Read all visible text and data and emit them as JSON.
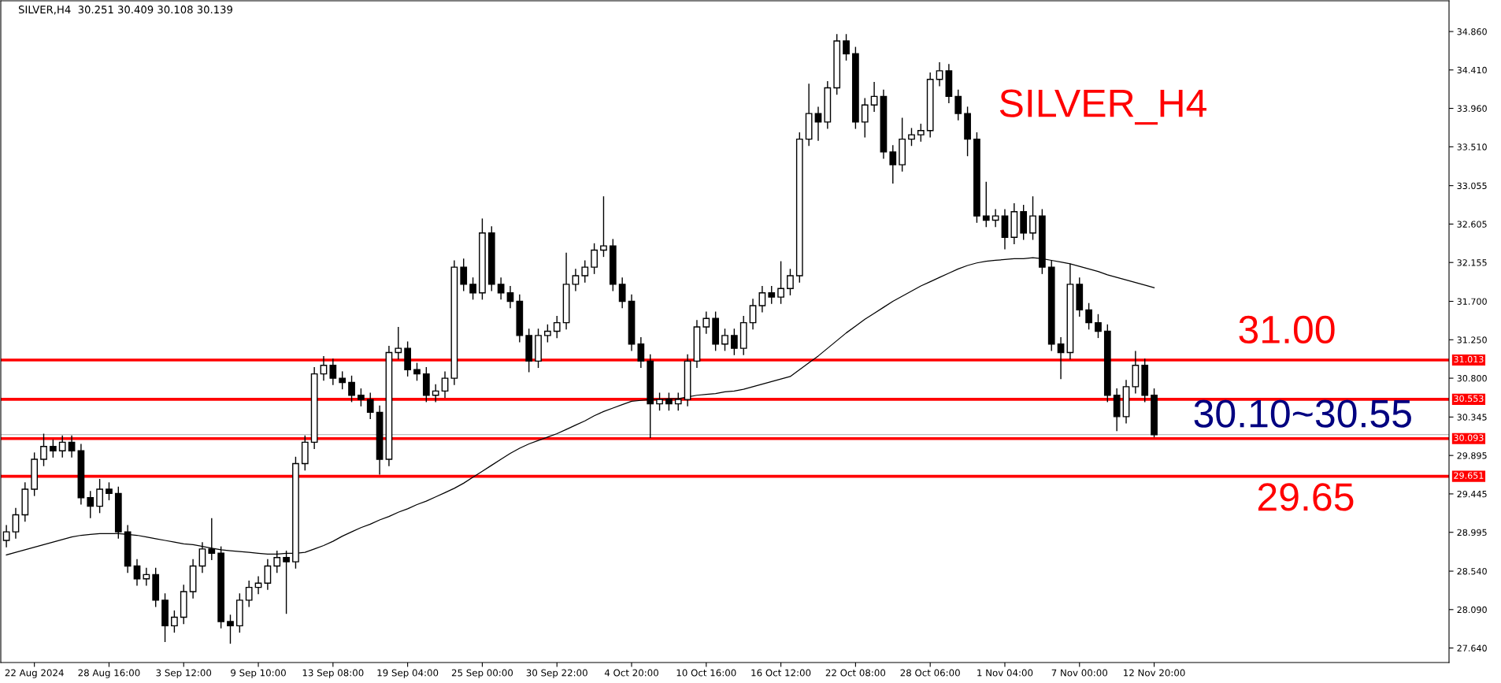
{
  "chart_data": {
    "type": "candlestick",
    "title": "SILVER,H4  30.251 30.409 30.108 30.139",
    "annotations": [
      "SILVER_H4",
      "31.00",
      "30.10~30.55",
      "29.65"
    ],
    "color": "#000000",
    "categories": [
      null,
      null,
      null,
      "22 Aug 2024",
      null,
      null,
      null,
      null,
      null,
      null,
      null,
      "28 Aug 16:00",
      null,
      null,
      null,
      null,
      null,
      null,
      null,
      "3 Sep 12:00",
      null,
      null,
      null,
      null,
      null,
      null,
      null,
      "9 Sep 10:00",
      null,
      null,
      null,
      null,
      null,
      null,
      null,
      "13 Sep 08:00",
      null,
      null,
      null,
      null,
      null,
      null,
      null,
      "19 Sep 04:00",
      null,
      null,
      null,
      null,
      null,
      null,
      null,
      "25 Sep 00:00",
      null,
      null,
      null,
      null,
      null,
      null,
      null,
      "30 Sep 22:00",
      null,
      null,
      null,
      null,
      null,
      null,
      null,
      "4 Oct 20:00",
      null,
      null,
      null,
      null,
      null,
      null,
      null,
      "10 Oct 16:00",
      null,
      null,
      null,
      null,
      null,
      null,
      null,
      "16 Oct 12:00",
      null,
      null,
      null,
      null,
      null,
      null,
      null,
      "22 Oct 08:00",
      null,
      null,
      null,
      null,
      null,
      null,
      null,
      "28 Oct 06:00",
      null,
      null,
      null,
      null,
      null,
      null,
      null,
      "1 Nov 04:00",
      null,
      null,
      null,
      null,
      null,
      null,
      null,
      "7 Nov 00:00",
      null,
      null,
      null,
      null,
      null,
      null,
      null,
      "12 Nov 20:00"
    ],
    "ohlc": [
      [
        28.9,
        29.08,
        28.82,
        29.0
      ],
      [
        29.0,
        29.28,
        28.92,
        29.2
      ],
      [
        29.2,
        29.58,
        29.12,
        29.5
      ],
      [
        29.5,
        29.93,
        29.42,
        29.85
      ],
      [
        29.85,
        30.15,
        29.77,
        30.0
      ],
      [
        30.0,
        30.08,
        29.87,
        29.95
      ],
      [
        29.95,
        30.13,
        29.87,
        30.05
      ],
      [
        30.05,
        30.13,
        29.87,
        29.95
      ],
      [
        29.95,
        30.03,
        29.32,
        29.4
      ],
      [
        29.4,
        29.48,
        29.16,
        29.3
      ],
      [
        29.3,
        29.62,
        29.22,
        29.5
      ],
      [
        29.5,
        29.58,
        29.37,
        29.45
      ],
      [
        29.45,
        29.53,
        28.92,
        29.0
      ],
      [
        29.0,
        29.08,
        28.52,
        28.6
      ],
      [
        28.6,
        28.68,
        28.37,
        28.45
      ],
      [
        28.45,
        28.58,
        28.37,
        28.5
      ],
      [
        28.5,
        28.58,
        28.12,
        28.2
      ],
      [
        28.2,
        28.28,
        27.71,
        27.9
      ],
      [
        27.9,
        28.08,
        27.82,
        28.0
      ],
      [
        28.0,
        28.38,
        27.92,
        28.3
      ],
      [
        28.3,
        28.68,
        28.22,
        28.6
      ],
      [
        28.6,
        28.88,
        28.52,
        28.8
      ],
      [
        28.8,
        29.16,
        28.67,
        28.75
      ],
      [
        28.75,
        28.83,
        27.87,
        27.95
      ],
      [
        27.95,
        28.03,
        27.69,
        27.9
      ],
      [
        27.9,
        28.28,
        27.82,
        28.2
      ],
      [
        28.2,
        28.43,
        28.12,
        28.35
      ],
      [
        28.35,
        28.48,
        28.27,
        28.4
      ],
      [
        28.4,
        28.68,
        28.32,
        28.6
      ],
      [
        28.6,
        28.78,
        28.52,
        28.7
      ],
      [
        28.7,
        28.78,
        28.04,
        28.65
      ],
      [
        28.65,
        29.88,
        28.57,
        29.8
      ],
      [
        29.8,
        30.13,
        29.72,
        30.05
      ],
      [
        30.05,
        30.93,
        29.97,
        30.85
      ],
      [
        30.85,
        31.06,
        30.77,
        30.95
      ],
      [
        30.95,
        31.03,
        30.72,
        30.8
      ],
      [
        30.8,
        30.88,
        30.67,
        30.75
      ],
      [
        30.75,
        30.83,
        30.52,
        30.6
      ],
      [
        30.6,
        30.68,
        30.47,
        30.55
      ],
      [
        30.55,
        30.63,
        30.32,
        30.4
      ],
      [
        30.4,
        30.48,
        29.67,
        29.85
      ],
      [
        29.85,
        31.18,
        29.77,
        31.1
      ],
      [
        31.1,
        31.4,
        31.02,
        31.15
      ],
      [
        31.15,
        31.23,
        30.82,
        30.9
      ],
      [
        30.9,
        30.98,
        30.77,
        30.85
      ],
      [
        30.85,
        30.93,
        30.52,
        30.6
      ],
      [
        30.6,
        30.73,
        30.52,
        30.65
      ],
      [
        30.65,
        30.88,
        30.57,
        30.8
      ],
      [
        30.8,
        32.18,
        30.72,
        32.1
      ],
      [
        32.1,
        32.2,
        31.82,
        31.9
      ],
      [
        31.9,
        31.98,
        31.72,
        31.8
      ],
      [
        31.8,
        32.67,
        31.72,
        32.5
      ],
      [
        32.5,
        32.58,
        31.82,
        31.9
      ],
      [
        31.9,
        31.98,
        31.72,
        31.8
      ],
      [
        31.8,
        31.88,
        31.62,
        31.7
      ],
      [
        31.7,
        31.78,
        31.22,
        31.3
      ],
      [
        31.3,
        31.38,
        30.87,
        31.0
      ],
      [
        31.0,
        31.38,
        30.92,
        31.3
      ],
      [
        31.3,
        31.43,
        31.22,
        31.35
      ],
      [
        31.35,
        31.53,
        31.27,
        31.45
      ],
      [
        31.45,
        32.27,
        31.37,
        31.9
      ],
      [
        31.9,
        32.08,
        31.82,
        32.0
      ],
      [
        32.0,
        32.18,
        31.92,
        32.1
      ],
      [
        32.1,
        32.38,
        32.02,
        32.3
      ],
      [
        32.3,
        32.93,
        32.22,
        32.35
      ],
      [
        32.35,
        32.43,
        31.82,
        31.9
      ],
      [
        31.9,
        31.98,
        31.62,
        31.7
      ],
      [
        31.7,
        31.78,
        31.12,
        31.2
      ],
      [
        31.2,
        31.28,
        30.92,
        31.0
      ],
      [
        31.0,
        31.08,
        30.1,
        30.5
      ],
      [
        30.5,
        30.63,
        30.42,
        30.55
      ],
      [
        30.55,
        30.63,
        30.42,
        30.5
      ],
      [
        30.5,
        30.63,
        30.42,
        30.55
      ],
      [
        30.55,
        31.08,
        30.47,
        31.0
      ],
      [
        31.0,
        31.48,
        30.92,
        31.4
      ],
      [
        31.4,
        31.58,
        31.32,
        31.5
      ],
      [
        31.5,
        31.58,
        31.12,
        31.2
      ],
      [
        31.2,
        31.38,
        31.12,
        31.3
      ],
      [
        31.3,
        31.38,
        31.07,
        31.15
      ],
      [
        31.15,
        31.53,
        31.07,
        31.45
      ],
      [
        31.45,
        31.73,
        31.37,
        31.65
      ],
      [
        31.65,
        31.88,
        31.57,
        31.8
      ],
      [
        31.8,
        31.88,
        31.67,
        31.75
      ],
      [
        31.75,
        32.17,
        31.67,
        31.85
      ],
      [
        31.85,
        32.08,
        31.77,
        32.0
      ],
      [
        32.0,
        33.68,
        31.92,
        33.6
      ],
      [
        33.6,
        34.25,
        33.52,
        33.9
      ],
      [
        33.9,
        33.98,
        33.58,
        33.8
      ],
      [
        33.8,
        34.28,
        33.72,
        34.2
      ],
      [
        34.2,
        34.83,
        34.12,
        34.75
      ],
      [
        34.75,
        34.83,
        34.52,
        34.6
      ],
      [
        34.6,
        34.68,
        33.72,
        33.8
      ],
      [
        33.8,
        34.08,
        33.62,
        34.0
      ],
      [
        34.0,
        34.27,
        33.92,
        34.1
      ],
      [
        34.1,
        34.18,
        33.37,
        33.45
      ],
      [
        33.45,
        33.53,
        33.08,
        33.3
      ],
      [
        33.3,
        33.85,
        33.22,
        33.6
      ],
      [
        33.6,
        33.73,
        33.52,
        33.65
      ],
      [
        33.65,
        33.78,
        33.57,
        33.7
      ],
      [
        33.7,
        34.38,
        33.62,
        34.3
      ],
      [
        34.3,
        34.5,
        34.22,
        34.4
      ],
      [
        34.4,
        34.48,
        34.02,
        34.1
      ],
      [
        34.1,
        34.18,
        33.82,
        33.9
      ],
      [
        33.9,
        33.98,
        33.4,
        33.6
      ],
      [
        33.6,
        33.68,
        32.62,
        32.7
      ],
      [
        32.7,
        33.1,
        32.57,
        32.65
      ],
      [
        32.65,
        32.78,
        32.57,
        32.7
      ],
      [
        32.7,
        32.78,
        32.31,
        32.45
      ],
      [
        32.45,
        32.85,
        32.37,
        32.75
      ],
      [
        32.75,
        32.83,
        32.42,
        32.5
      ],
      [
        32.5,
        32.93,
        32.42,
        32.7
      ],
      [
        32.7,
        32.78,
        32.02,
        32.1
      ],
      [
        32.1,
        32.18,
        31.12,
        31.2
      ],
      [
        31.2,
        31.28,
        30.79,
        31.1
      ],
      [
        31.1,
        32.14,
        31.02,
        31.9
      ],
      [
        31.9,
        31.98,
        31.52,
        31.6
      ],
      [
        31.6,
        31.68,
        31.37,
        31.45
      ],
      [
        31.45,
        31.55,
        31.27,
        31.35
      ],
      [
        31.35,
        31.43,
        30.52,
        30.6
      ],
      [
        30.6,
        30.68,
        30.18,
        30.35
      ],
      [
        30.35,
        30.78,
        30.27,
        30.7
      ],
      [
        30.7,
        31.12,
        30.62,
        30.95
      ],
      [
        30.95,
        31.03,
        30.52,
        30.6
      ],
      [
        30.6,
        30.68,
        30.108,
        30.139
      ]
    ],
    "series": [
      {
        "type": "line",
        "color": "#000000",
        "values": [
          28.73,
          28.76,
          28.79,
          28.82,
          28.85,
          28.88,
          28.91,
          28.94,
          28.96,
          28.97,
          28.98,
          28.98,
          28.98,
          28.97,
          28.96,
          28.94,
          28.92,
          28.9,
          28.88,
          28.86,
          28.85,
          28.83,
          28.81,
          28.79,
          28.78,
          28.77,
          28.76,
          28.75,
          28.74,
          28.74,
          28.75,
          28.75,
          28.76,
          28.8,
          28.84,
          28.89,
          28.95,
          29.0,
          29.05,
          29.09,
          29.14,
          29.18,
          29.23,
          29.27,
          29.32,
          29.36,
          29.41,
          29.46,
          29.51,
          29.57,
          29.64,
          29.71,
          29.78,
          29.85,
          29.92,
          29.98,
          30.03,
          30.07,
          30.11,
          30.15,
          30.2,
          30.25,
          30.3,
          30.36,
          30.41,
          30.45,
          30.49,
          30.53,
          30.54,
          30.55,
          30.55,
          30.56,
          30.56,
          30.58,
          30.6,
          30.61,
          30.62,
          30.64,
          30.65,
          30.67,
          30.7,
          30.73,
          30.76,
          30.79,
          30.82,
          30.9,
          30.98,
          31.06,
          31.15,
          31.24,
          31.33,
          31.41,
          31.49,
          31.56,
          31.63,
          31.7,
          31.76,
          31.82,
          31.88,
          31.93,
          31.98,
          32.03,
          32.08,
          32.12,
          32.15,
          32.17,
          32.18,
          32.19,
          32.2,
          32.2,
          32.21,
          32.2,
          32.18,
          32.16,
          32.14,
          32.11,
          32.08,
          32.05,
          32.01,
          31.98,
          31.95,
          31.92,
          31.89,
          31.86
        ]
      }
    ],
    "ylim": [
      27.47,
      35.22
    ],
    "yticks": [
      {
        "value": 34.86,
        "label": "34.860"
      },
      {
        "value": 34.41,
        "label": "34.410"
      },
      {
        "value": 33.96,
        "label": "33.960"
      },
      {
        "value": 33.51,
        "label": "33.510"
      },
      {
        "value": 33.055,
        "label": "33.055"
      },
      {
        "value": 32.605,
        "label": "32.605"
      },
      {
        "value": 32.155,
        "label": "32.155"
      },
      {
        "value": 31.7,
        "label": "31.700"
      },
      {
        "value": 31.25,
        "label": "31.250"
      },
      {
        "value": 30.8,
        "label": "30.800"
      },
      {
        "value": 30.345,
        "label": "30.345"
      },
      {
        "value": 29.895,
        "label": "29.895"
      },
      {
        "value": 29.445,
        "label": "29.445"
      },
      {
        "value": 28.995,
        "label": "28.995"
      },
      {
        "value": 28.54,
        "label": "28.540"
      },
      {
        "value": 28.09,
        "label": "28.090"
      },
      {
        "value": 27.64,
        "label": "27.640"
      }
    ],
    "ref_lines": [
      {
        "axis": "y",
        "value": 30.139,
        "label": null,
        "color": "#c0c0c0"
      },
      {
        "axis": "y",
        "value": 31.013,
        "label": "31.013",
        "color": "#ff0000"
      },
      {
        "axis": "y",
        "value": 30.553,
        "label": "30.553",
        "color": "#ff0000"
      },
      {
        "axis": "y",
        "value": 30.093,
        "label": "30.093",
        "color": "#ff0000"
      },
      {
        "axis": "y",
        "value": 29.651,
        "label": "29.651",
        "color": "#ff0000"
      }
    ]
  }
}
